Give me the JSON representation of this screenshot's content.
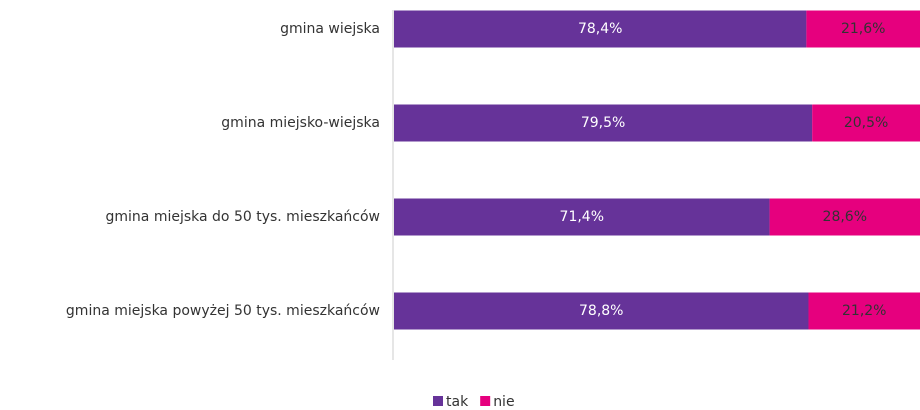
{
  "chart_data": {
    "type": "stacked_barh",
    "categories": [
      "gmina wiejska",
      "gmina miejsko-wiejska",
      "gmina miejska do 50 tys. mieszkańców",
      "gmina miejska powyżej 50 tys. mieszkańców"
    ],
    "series": [
      {
        "name": "tak",
        "color": "#663399",
        "values": [
          78.4,
          79.5,
          71.4,
          78.8
        ],
        "value_labels": [
          "78,4%",
          "79,5%",
          "71,4%",
          "78,8%"
        ]
      },
      {
        "name": "nie",
        "color": "#e6007e",
        "values": [
          21.6,
          20.5,
          28.6,
          21.2
        ],
        "value_labels": [
          "21,6%",
          "20,5%",
          "28,6%",
          "21,2%"
        ]
      }
    ],
    "xlim": [
      0,
      100
    ],
    "legend": "bottom"
  }
}
